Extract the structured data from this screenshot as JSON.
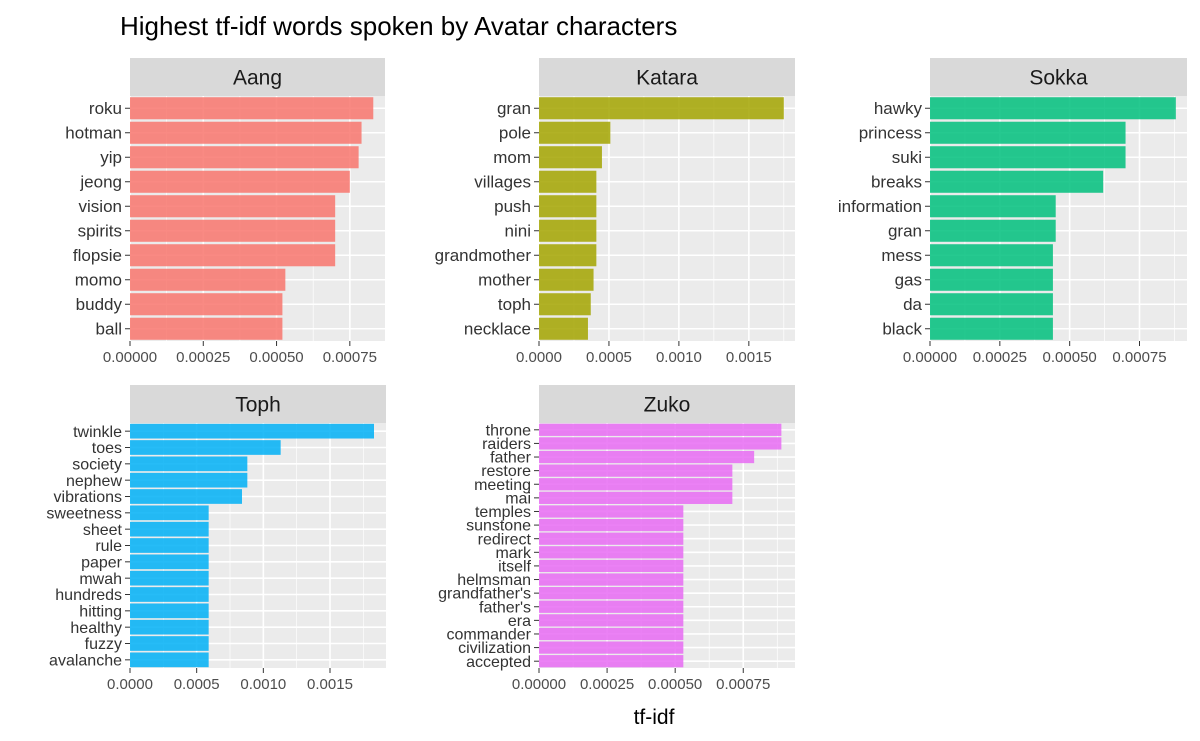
{
  "chart_data": {
    "type": "bar",
    "orientation": "horizontal",
    "title": "Highest tf-idf words spoken by Avatar characters",
    "xlabel": "tf-idf",
    "ylabel": "",
    "legend": "none",
    "grid": true,
    "facets": [
      {
        "name": "Aang",
        "color": "#F8766D",
        "xlim": [
          0,
          0.00087
        ],
        "x_ticks": [
          0,
          0.00025,
          0.0005,
          0.00075
        ],
        "x_tick_labels": [
          "0.00000",
          "0.00025",
          "0.00050",
          "0.00075"
        ],
        "categories": [
          "roku",
          "hotman",
          "yip",
          "jeong",
          "vision",
          "spirits",
          "flopsie",
          "momo",
          "buddy",
          "ball"
        ],
        "values": [
          0.00083,
          0.00079,
          0.00078,
          0.00075,
          0.0007,
          0.0007,
          0.0007,
          0.00053,
          0.00052,
          0.00052
        ]
      },
      {
        "name": "Katara",
        "color": "#A3A500",
        "xlim": [
          0,
          0.00183
        ],
        "x_ticks": [
          0,
          0.0005,
          0.001,
          0.0015
        ],
        "x_tick_labels": [
          "0.0000",
          "0.0005",
          "0.0010",
          "0.0015"
        ],
        "categories": [
          "gran",
          "pole",
          "mom",
          "villages",
          "push",
          "nini",
          "grandmother",
          "mother",
          "toph",
          "necklace"
        ],
        "values": [
          0.00175,
          0.00051,
          0.00045,
          0.00041,
          0.00041,
          0.00041,
          0.00041,
          0.00039,
          0.00037,
          0.00035
        ]
      },
      {
        "name": "Sokka",
        "color": "#00BF7D",
        "xlim": [
          0,
          0.00092
        ],
        "x_ticks": [
          0,
          0.00025,
          0.0005,
          0.00075
        ],
        "x_tick_labels": [
          "0.00000",
          "0.00025",
          "0.00050",
          "0.00075"
        ],
        "categories": [
          "hawky",
          "princess",
          "suki",
          "breaks",
          "information",
          "gran",
          "mess",
          "gas",
          "da",
          "black"
        ],
        "values": [
          0.00088,
          0.0007,
          0.0007,
          0.00062,
          0.00045,
          0.00045,
          0.00044,
          0.00044,
          0.00044,
          0.00044
        ]
      },
      {
        "name": "Toph",
        "color": "#00B0F6",
        "xlim": [
          0,
          0.00192
        ],
        "x_ticks": [
          0,
          0.0005,
          0.001,
          0.0015
        ],
        "x_tick_labels": [
          "0.0000",
          "0.0005",
          "0.0010",
          "0.0015"
        ],
        "categories": [
          "twinkle",
          "toes",
          "society",
          "nephew",
          "vibrations",
          "sweetness",
          "sheet",
          "rule",
          "paper",
          "mwah",
          "hundreds",
          "hitting",
          "healthy",
          "fuzzy",
          "avalanche"
        ],
        "values": [
          0.00183,
          0.00113,
          0.00088,
          0.00088,
          0.00084,
          0.00059,
          0.00059,
          0.00059,
          0.00059,
          0.00059,
          0.00059,
          0.00059,
          0.00059,
          0.00059,
          0.00059
        ]
      },
      {
        "name": "Zuko",
        "color": "#E76BF3",
        "xlim": [
          0,
          0.00094
        ],
        "x_ticks": [
          0,
          0.00025,
          0.0005,
          0.00075
        ],
        "x_tick_labels": [
          "0.00000",
          "0.00025",
          "0.00050",
          "0.00075"
        ],
        "categories": [
          "throne",
          "raiders",
          "father",
          "restore",
          "meeting",
          "mai",
          "temples",
          "sunstone",
          "redirect",
          "mark",
          "itself",
          "helmsman",
          "grandfather's",
          "father's",
          "era",
          "commander",
          "civilization",
          "accepted"
        ],
        "values": [
          0.00089,
          0.00089,
          0.00079,
          0.00071,
          0.00071,
          0.00071,
          0.00053,
          0.00053,
          0.00053,
          0.00053,
          0.00053,
          0.00053,
          0.00053,
          0.00053,
          0.00053,
          0.00053,
          0.00053,
          0.00053
        ]
      }
    ]
  }
}
